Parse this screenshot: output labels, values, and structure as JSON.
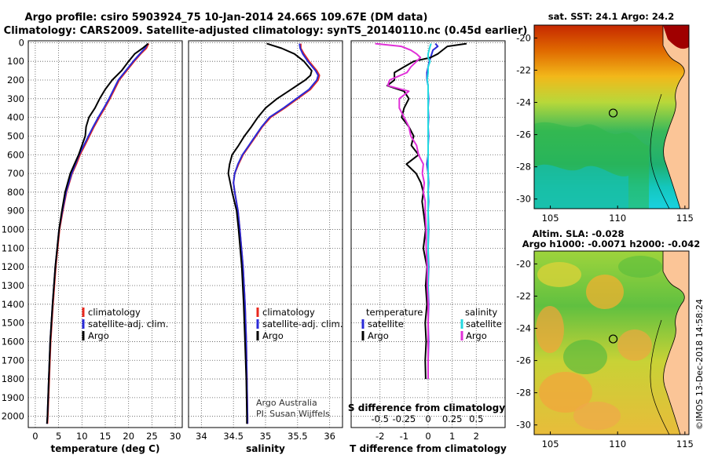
{
  "title": {
    "line1": "Argo profile: csiro 5903924_75 10-Jan-2014 24.66S 109.67E (DM data)",
    "line2": "Climatology: CARS2009. Satellite-adjusted climatology: synTS_20140110.nc (0.45d earlier)"
  },
  "colors": {
    "climatology": "#e8281e",
    "satellite": "#2a2ad8",
    "argo": "#000000",
    "s_satellite": "#22d8e0",
    "s_argo": "#e030d8"
  },
  "depth_axis": {
    "ticks": [
      0,
      100,
      200,
      300,
      400,
      500,
      600,
      700,
      800,
      900,
      1000,
      1100,
      1200,
      1300,
      1400,
      1500,
      1600,
      1700,
      1800,
      1900,
      2000
    ],
    "ylim": [
      -10,
      2060
    ]
  },
  "chart_data": [
    {
      "type": "line",
      "id": "temperature",
      "xlabel": "temperature (deg C)",
      "xlim": [
        -1.5,
        31.5
      ],
      "xticks": [
        0,
        5,
        10,
        15,
        20,
        25,
        30
      ],
      "depth": [
        5,
        30,
        60,
        100,
        150,
        200,
        250,
        300,
        350,
        400,
        450,
        500,
        550,
        600,
        650,
        700,
        800,
        900,
        1000,
        1200,
        1400,
        1600,
        1800,
        2000,
        2040
      ],
      "series": [
        {
          "name": "climatology",
          "color": "#e8281e",
          "values": [
            24.3,
            23.8,
            22.6,
            21.2,
            19.6,
            18.0,
            17.0,
            16.0,
            14.9,
            13.7,
            12.6,
            11.6,
            10.6,
            9.6,
            8.8,
            7.9,
            6.7,
            5.9,
            5.2,
            4.4,
            3.8,
            3.3,
            3.0,
            2.7,
            2.6
          ]
        },
        {
          "name": "satellite-adj. clim.",
          "color": "#2a2ad8",
          "values": [
            24.1,
            23.5,
            22.4,
            21.0,
            19.4,
            17.8,
            16.8,
            15.8,
            14.7,
            13.5,
            12.4,
            11.4,
            10.4,
            9.4,
            8.6,
            7.8,
            6.6,
            5.8,
            5.1,
            4.3,
            3.7,
            3.2,
            2.9,
            2.6,
            2.5
          ]
        },
        {
          "name": "Argo",
          "color": "#000000",
          "values": [
            24.2,
            23.0,
            21.3,
            20.0,
            18.5,
            16.5,
            15.0,
            13.8,
            12.8,
            11.5,
            10.9,
            10.7,
            10.0,
            9.3,
            8.4,
            7.5,
            6.4,
            5.7,
            5.1,
            4.3,
            3.7,
            3.2,
            2.9,
            2.6,
            2.5
          ]
        }
      ]
    },
    {
      "type": "line",
      "id": "salinity",
      "xlabel": "salinity",
      "xlim": [
        33.8,
        36.2
      ],
      "xticks": [
        34,
        34.5,
        35,
        35.5,
        36
      ],
      "xtick_labels": [
        "34",
        "34.5",
        "35",
        "35.5",
        "36"
      ],
      "depth": [
        5,
        30,
        60,
        100,
        150,
        175,
        200,
        250,
        300,
        350,
        400,
        450,
        500,
        550,
        600,
        650,
        700,
        750,
        800,
        900,
        1000,
        1200,
        1400,
        1600,
        1800,
        2000,
        2040
      ],
      "series": [
        {
          "name": "climatology",
          "color": "#e8281e",
          "values": [
            35.55,
            35.55,
            35.6,
            35.68,
            35.8,
            35.84,
            35.82,
            35.7,
            35.5,
            35.3,
            35.08,
            34.95,
            34.85,
            34.75,
            34.65,
            34.58,
            34.52,
            34.5,
            34.52,
            34.57,
            34.6,
            34.65,
            34.68,
            34.7,
            34.71,
            34.72,
            34.72
          ]
        },
        {
          "name": "satellite-adj. clim.",
          "color": "#2a2ad8",
          "values": [
            35.53,
            35.54,
            35.58,
            35.66,
            35.78,
            35.82,
            35.8,
            35.68,
            35.48,
            35.28,
            35.06,
            34.94,
            34.84,
            34.74,
            34.64,
            34.57,
            34.52,
            34.5,
            34.52,
            34.57,
            34.6,
            34.65,
            34.68,
            34.7,
            34.71,
            34.72,
            34.72
          ]
        },
        {
          "name": "Argo",
          "color": "#000000",
          "values": [
            35.02,
            35.25,
            35.45,
            35.6,
            35.72,
            35.7,
            35.62,
            35.4,
            35.18,
            35.0,
            34.88,
            34.78,
            34.67,
            34.58,
            34.48,
            34.44,
            34.42,
            34.45,
            34.48,
            34.55,
            34.58,
            34.63,
            34.66,
            34.68,
            34.7,
            34.71,
            34.71
          ]
        }
      ]
    },
    {
      "type": "line",
      "id": "difference",
      "xlabel": "T difference from climatology",
      "xlabel_top": "S difference from climatology",
      "xlim": [
        -3.2,
        3.2
      ],
      "xticks": [
        -2,
        -1,
        0,
        1,
        2
      ],
      "xticks_top": [
        -0.5,
        -0.25,
        0,
        0.25,
        0.5
      ],
      "xtick_labels_top": [
        "-0.5",
        "-0.25",
        "0",
        "0.25",
        "0.5"
      ],
      "depth": [
        5,
        20,
        40,
        60,
        80,
        100,
        130,
        160,
        200,
        230,
        260,
        300,
        350,
        400,
        450,
        500,
        550,
        600,
        650,
        700,
        750,
        800,
        850,
        900,
        1000,
        1100,
        1200,
        1300,
        1400,
        1500,
        1600,
        1700,
        1800
      ],
      "series": [
        {
          "name": "temperature satellite",
          "color": "#2a2ad8",
          "values": [
            0.3,
            0.4,
            0.2,
            0.15,
            0.1,
            0.05,
            0.0,
            -0.05,
            -0.05,
            0.0,
            0.0,
            0.02,
            0.0,
            0.02,
            0.0,
            0.02,
            0.0,
            0.0,
            -0.05,
            0.0,
            0.02,
            0.0,
            0.02,
            0.0,
            0.02,
            0.0,
            0.02,
            0.0,
            0.02,
            0.0,
            0.02,
            0.0,
            0.0
          ]
        },
        {
          "name": "temperature Argo",
          "color": "#000000",
          "values": [
            1.6,
            0.8,
            0.6,
            0.4,
            0.1,
            -0.6,
            -1.0,
            -1.4,
            -1.4,
            -1.7,
            -1.0,
            -0.8,
            -1.0,
            -1.1,
            -0.8,
            -0.6,
            -0.7,
            -0.4,
            -0.9,
            -0.5,
            -0.3,
            -0.2,
            -0.25,
            -0.2,
            -0.1,
            -0.2,
            -0.05,
            -0.1,
            -0.05,
            -0.12,
            -0.08,
            -0.12,
            -0.1
          ]
        },
        {
          "name": "salinity satellite",
          "color": "#22d8e0",
          "values": [
            0.03,
            0.02,
            0.01,
            0.0,
            0.0,
            0.02,
            0.0,
            0.0,
            -0.01,
            0.0,
            0.0,
            0.0,
            0.0,
            0.0,
            0.0,
            0.0,
            0.0,
            0.0,
            0.0,
            0.0,
            0.0,
            0.0,
            0.0,
            0.0,
            0.0,
            0.0,
            0.0,
            0.0,
            0.0,
            0.0,
            0.0,
            0.0,
            0.0
          ]
        },
        {
          "name": "salinity Argo",
          "color": "#e030d8",
          "values": [
            -0.55,
            -0.28,
            -0.18,
            -0.12,
            -0.08,
            -0.12,
            -0.18,
            -0.22,
            -0.4,
            -0.42,
            -0.2,
            -0.3,
            -0.3,
            -0.25,
            -0.2,
            -0.18,
            -0.12,
            -0.1,
            -0.05,
            -0.06,
            -0.04,
            -0.05,
            -0.03,
            -0.03,
            -0.02,
            -0.02,
            -0.01,
            -0.01,
            0.0,
            0.0,
            0.0,
            0.0,
            0.0
          ]
        }
      ]
    },
    {
      "type": "heatmap",
      "id": "sst-map",
      "title": "sat. SST: 24.1 Argo: 24.2",
      "xticks": [
        105,
        110,
        115
      ],
      "yticks": [
        -20,
        -22,
        -24,
        -26,
        -28,
        -30
      ],
      "yticks_labels": [
        "-20",
        "-22",
        "-24",
        "-26",
        "-28",
        "-30"
      ],
      "xlim": [
        103.8,
        115.3
      ],
      "ylim": [
        -30.6,
        -19.2
      ],
      "profile_location": {
        "lon": 109.67,
        "lat": -24.66
      }
    },
    {
      "type": "heatmap",
      "id": "sla-map",
      "title": "Altim. SLA: -0.028",
      "subtitle": "Argo h1000: -0.0071 h2000: -0.042",
      "xticks": [
        105,
        110,
        115
      ],
      "yticks": [
        -20,
        -22,
        -24,
        -26,
        -28,
        -30
      ],
      "yticks_labels": [
        "-20",
        "-22",
        "-24",
        "-26",
        "-28",
        "-30"
      ],
      "xlim": [
        103.8,
        115.3
      ],
      "ylim": [
        -30.6,
        -19.2
      ],
      "profile_location": {
        "lon": 109.67,
        "lat": -24.66
      }
    }
  ],
  "legends": {
    "temperature": [
      "climatology",
      "satellite-adj. clim.",
      "Argo"
    ],
    "salinity": [
      "climatology",
      "satellite-adj. clim.",
      "Argo"
    ],
    "diff_left_header": "temperature",
    "diff_left": [
      "satellite",
      "Argo"
    ],
    "diff_right_header": "salinity",
    "diff_right": [
      "satellite",
      "Argo"
    ]
  },
  "credits": {
    "line1": "Argo Australia",
    "line2": "PI: Susan Wijffels",
    "imos": "©IMOS 13-Dec-2018 14:58:24"
  }
}
